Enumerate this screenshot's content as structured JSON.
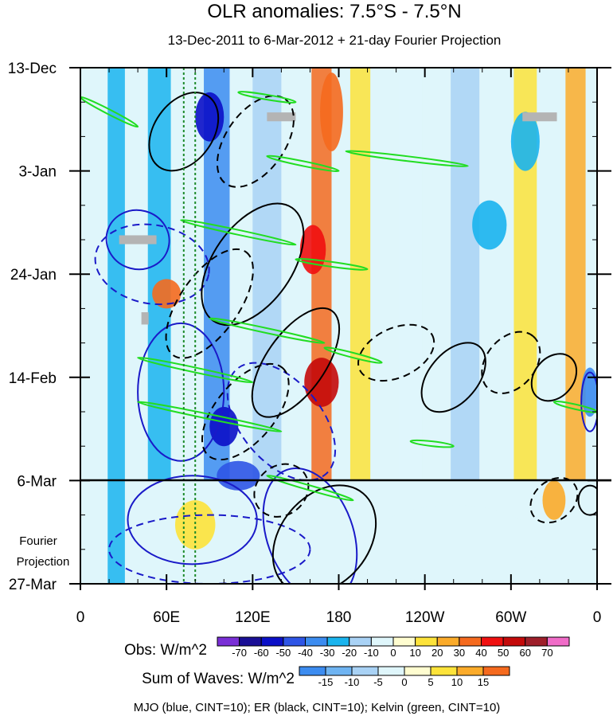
{
  "chart_data": {
    "type": "heatmap",
    "title": "OLR anomalies: 7.5°S - 7.5°N",
    "subtitle": "13-Dec-2011 to 6-Mar-2012 + 21-day Fourier Projection",
    "y_axis": {
      "ticks": [
        {
          "label": "13-Dec",
          "day": 0
        },
        {
          "label": "3-Jan",
          "day": 21
        },
        {
          "label": "24-Jan",
          "day": 42
        },
        {
          "label": "14-Feb",
          "day": 63
        },
        {
          "label": "6-Mar",
          "day": 84
        },
        {
          "label": "27-Mar",
          "day": 105
        }
      ],
      "range_days": [
        0,
        105
      ],
      "minor_tick_every_days": 7
    },
    "x_axis": {
      "ticks": [
        {
          "label": "0",
          "lon": 0
        },
        {
          "label": "60E",
          "lon": 60
        },
        {
          "label": "120E",
          "lon": 120
        },
        {
          "label": "180",
          "lon": 180
        },
        {
          "label": "120W",
          "lon": 240
        },
        {
          "label": "60W",
          "lon": 300
        },
        {
          "label": "0",
          "lon": 360
        }
      ],
      "range_lon": [
        0,
        360
      ],
      "minor_tick_every_lon": 20
    },
    "projection_start_day": 84,
    "fourier_label_line1": "Fourier",
    "fourier_label_line2": "Projection",
    "reference_lon_lines": [
      72,
      80
    ],
    "obs_colorbar": {
      "label": "Obs: W/m^2",
      "levels": [
        -70,
        -60,
        -50,
        -40,
        -30,
        -20,
        -10,
        0,
        10,
        20,
        30,
        40,
        50,
        60,
        70
      ],
      "colors": [
        "#7a2fd6",
        "#1a0f96",
        "#0b10c8",
        "#2e55e6",
        "#3c8cf0",
        "#1ab4ee",
        "#a9d2f5",
        "#dff6fb",
        "#fffdd0",
        "#fde33a",
        "#fbab2a",
        "#f56a1e",
        "#f01010",
        "#c40a0a",
        "#9e1f2a",
        "#f06cc8"
      ]
    },
    "waves_colorbar": {
      "label": "Sum of Waves: W/m^2",
      "levels": [
        -15,
        -10,
        -5,
        0,
        5,
        10,
        15
      ],
      "colors": [
        "#3c8cf0",
        "#6fb4f2",
        "#a9d2f5",
        "#dff6fb",
        "#fffdd0",
        "#fde33a",
        "#fbab2a",
        "#f56a1e"
      ]
    },
    "footer": "MJO (blue, CINT=10); ER (black, CINT=10); Kelvin (green, CINT=10)",
    "wave_colors": {
      "mjo": "#1a1ac8",
      "er": "#000000",
      "kelvin": "#22dd22",
      "reference": "#1c8a2a"
    },
    "missing_color": "#b4b4b4",
    "anomaly_bands": [
      {
        "lon": 25,
        "width": 12,
        "value": -25,
        "day_range": [
          0,
          105
        ]
      },
      {
        "lon": 55,
        "width": 16,
        "value": -30,
        "day_range": [
          0,
          84
        ]
      },
      {
        "lon": 95,
        "width": 18,
        "value": -40,
        "day_range": [
          0,
          84
        ]
      },
      {
        "lon": 130,
        "width": 20,
        "value": -20,
        "day_range": [
          0,
          84
        ]
      },
      {
        "lon": 168,
        "width": 14,
        "value": 35,
        "day_range": [
          0,
          84
        ]
      },
      {
        "lon": 195,
        "width": 14,
        "value": 15,
        "day_range": [
          0,
          84
        ]
      },
      {
        "lon": 230,
        "width": 16,
        "value": -5,
        "day_range": [
          0,
          84
        ]
      },
      {
        "lon": 268,
        "width": 20,
        "value": -20,
        "day_range": [
          0,
          84
        ]
      },
      {
        "lon": 310,
        "width": 16,
        "value": 10,
        "day_range": [
          0,
          84
        ]
      },
      {
        "lon": 345,
        "width": 14,
        "value": 20,
        "day_range": [
          0,
          84
        ]
      }
    ],
    "anomaly_blobs": [
      {
        "lon": 90,
        "day": 10,
        "rlon": 10,
        "rday": 5,
        "value": -55
      },
      {
        "lon": 100,
        "day": 73,
        "rlon": 10,
        "rday": 4,
        "value": -55
      },
      {
        "lon": 110,
        "day": 83,
        "rlon": 15,
        "rday": 3,
        "value": -45
      },
      {
        "lon": 168,
        "day": 64,
        "rlon": 12,
        "rday": 5,
        "value": 50
      },
      {
        "lon": 162,
        "day": 37,
        "rlon": 9,
        "rday": 5,
        "value": 40
      },
      {
        "lon": 175,
        "day": 9,
        "rlon": 8,
        "rday": 8,
        "value": 35
      },
      {
        "lon": 60,
        "day": 46,
        "rlon": 10,
        "rday": 3,
        "value": 30
      },
      {
        "lon": 310,
        "day": 15,
        "rlon": 10,
        "rday": 6,
        "value": -25
      },
      {
        "lon": 285,
        "day": 32,
        "rlon": 12,
        "rday": 5,
        "value": -30
      },
      {
        "lon": 355,
        "day": 66,
        "rlon": 6,
        "rday": 5,
        "value": -35
      },
      {
        "lon": 330,
        "day": 88,
        "rlon": 8,
        "rday": 4,
        "value": 20
      },
      {
        "lon": 80,
        "day": 93,
        "rlon": 14,
        "rday": 5,
        "value": 15
      },
      {
        "lon": 175,
        "day": 99,
        "rlon": 20,
        "rday": 5,
        "value": -10
      },
      {
        "lon": 260,
        "day": 97,
        "rlon": 60,
        "rday": 8,
        "value": -5
      }
    ],
    "missing_patches": [
      {
        "lon": 140,
        "day": 10,
        "wlon": 20,
        "hday": 1.8
      },
      {
        "lon": 320,
        "day": 10,
        "wlon": 24,
        "hday": 1.8
      },
      {
        "lon": 40,
        "day": 35,
        "wlon": 26,
        "hday": 1.8
      },
      {
        "lon": 45,
        "day": 51,
        "wlon": 5,
        "hday": 2.5
      }
    ],
    "mjo_contours": [
      {
        "lon": 70,
        "day": 66,
        "rlon": 30,
        "rday": 14,
        "angle": 0,
        "dashed": false
      },
      {
        "lon": 78,
        "day": 92,
        "rlon": 45,
        "rday": 9,
        "angle": 0,
        "dashed": false
      },
      {
        "lon": 40,
        "day": 35,
        "rlon": 22,
        "rday": 6,
        "angle": 15,
        "dashed": false
      },
      {
        "lon": 50,
        "day": 40,
        "rlon": 40,
        "rday": 8,
        "angle": 10,
        "dashed": true
      },
      {
        "lon": 160,
        "day": 95,
        "rlon": 30,
        "rday": 14,
        "angle": -20,
        "dashed": false
      },
      {
        "lon": 140,
        "day": 72,
        "rlon": 28,
        "rday": 14,
        "angle": -40,
        "dashed": true
      },
      {
        "lon": 355,
        "day": 68,
        "rlon": 6,
        "rday": 6,
        "angle": 0,
        "dashed": false
      },
      {
        "lon": 90,
        "day": 98,
        "rlon": 70,
        "rday": 7,
        "angle": 0,
        "dashed": true
      }
    ],
    "er_contours": [
      {
        "lon": 72,
        "day": 13,
        "rlon": 30,
        "rday": 6,
        "angle": -55,
        "dashed": false
      },
      {
        "lon": 122,
        "day": 15,
        "rlon": 36,
        "rday": 6,
        "angle": -55,
        "dashed": true
      },
      {
        "lon": 120,
        "day": 40,
        "rlon": 48,
        "rday": 8,
        "angle": -55,
        "dashed": false
      },
      {
        "lon": 90,
        "day": 48,
        "rlon": 44,
        "rday": 6,
        "angle": -55,
        "dashed": true
      },
      {
        "lon": 150,
        "day": 60,
        "rlon": 44,
        "rday": 6,
        "angle": -55,
        "dashed": false
      },
      {
        "lon": 115,
        "day": 70,
        "rlon": 40,
        "rday": 6,
        "angle": -50,
        "dashed": true
      },
      {
        "lon": 260,
        "day": 63,
        "rlon": 28,
        "rday": 5,
        "angle": -50,
        "dashed": false
      },
      {
        "lon": 300,
        "day": 60,
        "rlon": 24,
        "rday": 5,
        "angle": -50,
        "dashed": true
      },
      {
        "lon": 330,
        "day": 63,
        "rlon": 18,
        "rday": 4,
        "angle": -50,
        "dashed": false
      },
      {
        "lon": 220,
        "day": 58,
        "rlon": 28,
        "rday": 5,
        "angle": -25,
        "dashed": true
      },
      {
        "lon": 170,
        "day": 96,
        "rlon": 42,
        "rday": 9,
        "angle": -50,
        "dashed": false
      },
      {
        "lon": 140,
        "day": 86,
        "rlon": 20,
        "rday": 5,
        "angle": -40,
        "dashed": true
      },
      {
        "lon": 330,
        "day": 88,
        "rlon": 18,
        "rday": 4,
        "angle": -40,
        "dashed": true
      },
      {
        "lon": 355,
        "day": 88,
        "rlon": 8,
        "rday": 3,
        "angle": 0,
        "dashed": false
      }
    ],
    "kelvin_segments": [
      {
        "lon1": 0,
        "day1": 6,
        "lon2": 40,
        "day2": 12
      },
      {
        "lon1": 110,
        "day1": 5,
        "lon2": 150,
        "day2": 7
      },
      {
        "lon1": 130,
        "day1": 18,
        "lon2": 180,
        "day2": 21
      },
      {
        "lon1": 185,
        "day1": 17,
        "lon2": 270,
        "day2": 20
      },
      {
        "lon1": 70,
        "day1": 31,
        "lon2": 150,
        "day2": 36
      },
      {
        "lon1": 150,
        "day1": 39,
        "lon2": 200,
        "day2": 41
      },
      {
        "lon1": 90,
        "day1": 51,
        "lon2": 170,
        "day2": 56
      },
      {
        "lon1": 170,
        "day1": 57,
        "lon2": 210,
        "day2": 60
      },
      {
        "lon1": 40,
        "day1": 59,
        "lon2": 120,
        "day2": 64
      },
      {
        "lon1": 40,
        "day1": 68,
        "lon2": 140,
        "day2": 74
      },
      {
        "lon1": 330,
        "day1": 68,
        "lon2": 360,
        "day2": 70
      },
      {
        "lon1": 130,
        "day1": 83,
        "lon2": 190,
        "day2": 88
      },
      {
        "lon1": 230,
        "day1": 76,
        "lon2": 260,
        "day2": 77
      }
    ]
  }
}
